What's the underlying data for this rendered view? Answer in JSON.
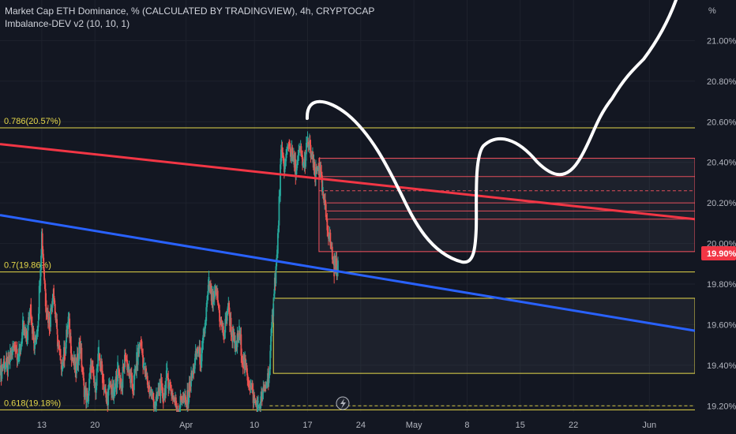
{
  "header": {
    "title": "Market Cap ETH Dominance, % (CALCULATED BY TRADINGVIEW), 4h, CRYPTOCAP",
    "indicator": "Imbalance-DEV v2 (10, 10, 1)"
  },
  "colors": {
    "background": "#131722",
    "fib_line": "#e6d84a",
    "red_trend": "#f23645",
    "blue_trend": "#2962ff",
    "zone_line": "#f7525f",
    "up_candle": "#26a69a",
    "down_candle": "#ef5350",
    "price_tag": "#f23645",
    "drawing": "#ffffff"
  },
  "chart_data": {
    "type": "candlestick",
    "symbol": "Market Cap ETH Dominance, %",
    "timeframe": "4h",
    "y_unit": "%",
    "y_range": [
      19.17,
      21.2
    ],
    "y_ticks": [
      "21.00%",
      "20.80%",
      "20.60%",
      "20.40%",
      "20.20%",
      "20.00%",
      "19.80%",
      "19.60%",
      "19.40%",
      "19.20%"
    ],
    "y_tick_values": [
      21.0,
      20.8,
      20.6,
      20.4,
      20.2,
      20.0,
      19.8,
      19.6,
      19.4,
      19.2
    ],
    "x_ticks": [
      "13",
      "20",
      "Apr",
      "10",
      "17",
      "24",
      "May",
      "8",
      "15",
      "22",
      "Jun"
    ],
    "x_tick_days": [
      13,
      20,
      32,
      41,
      48,
      55,
      62,
      69,
      76,
      83,
      93
    ],
    "x_range_days": [
      7.5,
      99.0
    ],
    "last_price": "19.90%",
    "last_price_value": 19.9,
    "fib_levels": [
      {
        "label": "0.786(20.57%)",
        "value": 20.57
      },
      {
        "label": "0.7(19.86%)",
        "value": 19.86
      },
      {
        "label": "0.618(19.18%)",
        "value": 19.18
      }
    ],
    "trendlines": [
      {
        "name": "red",
        "from": [
          7.5,
          20.49
        ],
        "to": [
          99.0,
          20.12
        ]
      },
      {
        "name": "blue",
        "from": [
          7.5,
          20.14
        ],
        "to": [
          99.0,
          19.57
        ]
      }
    ],
    "imbalance_zones": [
      {
        "top": 20.42,
        "bottom": 19.96,
        "start_day": 49.5,
        "style": "red"
      },
      {
        "top": 20.33,
        "bottom": 20.33,
        "start_day": 49.5,
        "style": "red"
      },
      {
        "top": 20.26,
        "bottom": 20.26,
        "start_day": 49.5,
        "style": "red-dashed"
      },
      {
        "top": 20.2,
        "bottom": 20.2,
        "start_day": 50.5,
        "style": "red"
      },
      {
        "top": 20.16,
        "bottom": 20.16,
        "start_day": 50.5,
        "style": "red"
      },
      {
        "top": 20.12,
        "bottom": 20.12,
        "start_day": 50.5,
        "style": "red"
      },
      {
        "top": 19.73,
        "bottom": 19.36,
        "start_day": 43.5,
        "style": "yellow"
      },
      {
        "top": 19.2,
        "bottom": 19.2,
        "start_day": 43.0,
        "style": "yellow-dashed"
      }
    ],
    "price_path": [
      [
        7.5,
        19.35
      ],
      [
        8,
        19.42
      ],
      [
        8.5,
        19.38
      ],
      [
        9,
        19.46
      ],
      [
        9.5,
        19.5
      ],
      [
        10,
        19.44
      ],
      [
        10.5,
        19.58
      ],
      [
        11,
        19.52
      ],
      [
        11.5,
        19.7
      ],
      [
        12,
        19.48
      ],
      [
        12.5,
        19.62
      ],
      [
        13,
        20.05
      ],
      [
        13.5,
        19.72
      ],
      [
        14,
        19.6
      ],
      [
        14.5,
        19.78
      ],
      [
        15,
        19.55
      ],
      [
        15.5,
        19.4
      ],
      [
        16,
        19.46
      ],
      [
        16.5,
        19.62
      ],
      [
        17,
        19.44
      ],
      [
        17.5,
        19.36
      ],
      [
        18,
        19.52
      ],
      [
        18.5,
        19.3
      ],
      [
        19,
        19.22
      ],
      [
        19.5,
        19.4
      ],
      [
        20,
        19.28
      ],
      [
        20.5,
        19.45
      ],
      [
        21,
        19.35
      ],
      [
        21.5,
        19.22
      ],
      [
        22,
        19.3
      ],
      [
        22.5,
        19.25
      ],
      [
        23,
        19.38
      ],
      [
        23.5,
        19.3
      ],
      [
        24,
        19.45
      ],
      [
        24.5,
        19.36
      ],
      [
        25,
        19.28
      ],
      [
        25.5,
        19.42
      ],
      [
        26,
        19.52
      ],
      [
        26.5,
        19.38
      ],
      [
        27,
        19.3
      ],
      [
        27.5,
        19.25
      ],
      [
        28,
        19.2
      ],
      [
        28.5,
        19.3
      ],
      [
        29,
        19.24
      ],
      [
        29.5,
        19.35
      ],
      [
        30,
        19.28
      ],
      [
        30.5,
        19.22
      ],
      [
        31,
        19.18
      ],
      [
        31.5,
        19.25
      ],
      [
        32,
        19.2
      ],
      [
        32.5,
        19.3
      ],
      [
        33,
        19.38
      ],
      [
        33.5,
        19.48
      ],
      [
        34,
        19.42
      ],
      [
        34.5,
        19.6
      ],
      [
        35,
        19.8
      ],
      [
        35.5,
        19.7
      ],
      [
        36,
        19.76
      ],
      [
        36.5,
        19.62
      ],
      [
        37,
        19.54
      ],
      [
        37.5,
        19.7
      ],
      [
        38,
        19.56
      ],
      [
        38.5,
        19.48
      ],
      [
        39,
        19.56
      ],
      [
        39.5,
        19.42
      ],
      [
        40,
        19.36
      ],
      [
        40.5,
        19.3
      ],
      [
        41,
        19.22
      ],
      [
        41.5,
        19.19
      ],
      [
        42,
        19.24
      ],
      [
        42.5,
        19.3
      ],
      [
        43,
        19.38
      ],
      [
        43.5,
        19.74
      ],
      [
        44,
        19.95
      ],
      [
        44.5,
        20.44
      ],
      [
        45,
        20.38
      ],
      [
        45.5,
        20.5
      ],
      [
        46,
        20.42
      ],
      [
        46.5,
        20.36
      ],
      [
        47,
        20.46
      ],
      [
        47.5,
        20.38
      ],
      [
        48,
        20.5
      ],
      [
        48.5,
        20.44
      ],
      [
        49,
        20.32
      ],
      [
        49.5,
        20.4
      ],
      [
        50,
        20.24
      ],
      [
        50.5,
        20.12
      ],
      [
        51,
        20.0
      ],
      [
        51.5,
        19.88
      ],
      [
        52,
        19.9
      ]
    ]
  }
}
